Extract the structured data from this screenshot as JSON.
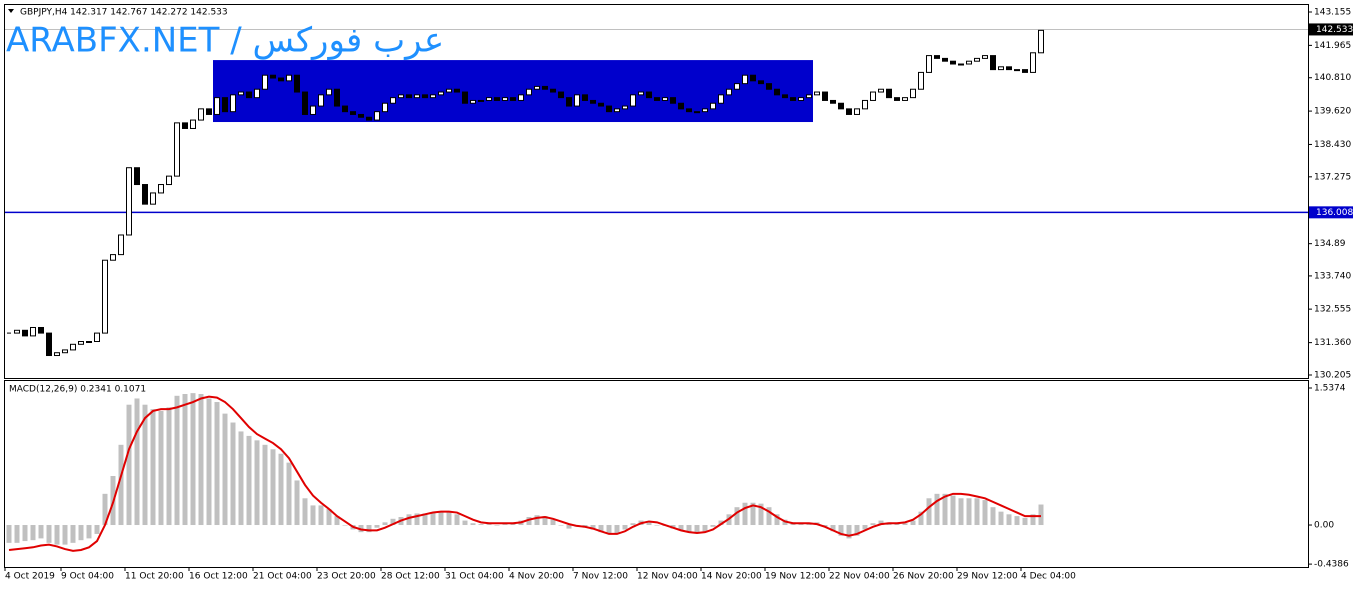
{
  "chart_data": {
    "type": "candlestick",
    "header": "GBPJPY,H4  142.317 142.767 142.272 142.533",
    "watermark": "ARABFX.NET / عرب فوركس",
    "color_up": "#ffffff",
    "color_down": "#000000",
    "categories": [
      "4 Oct 2019",
      null,
      null,
      null,
      null,
      null,
      null,
      "9 Oct 04:00",
      null,
      null,
      null,
      null,
      null,
      null,
      null,
      "11 Oct 20:00",
      null,
      null,
      null,
      null,
      null,
      null,
      null,
      "16 Oct 12:00",
      null,
      null,
      null,
      null,
      null,
      null,
      null,
      "21 Oct 04:00",
      null,
      null,
      null,
      null,
      null,
      null,
      null,
      "23 Oct 20:00",
      null,
      null,
      null,
      null,
      null,
      null,
      null,
      "28 Oct 12:00",
      null,
      null,
      null,
      null,
      null,
      null,
      null,
      "31 Oct 04:00",
      null,
      null,
      null,
      null,
      null,
      null,
      null,
      "4 Nov 20:00",
      null,
      null,
      null,
      null,
      null,
      null,
      null,
      "7 Nov 12:00",
      null,
      null,
      null,
      null,
      null,
      null,
      null,
      "12 Nov 04:00",
      null,
      null,
      null,
      null,
      null,
      null,
      null,
      "14 Nov 20:00",
      null,
      null,
      null,
      null,
      null,
      null,
      null,
      "19 Nov 12:00",
      null,
      null,
      null,
      null,
      null,
      null,
      null,
      "22 Nov 04:00",
      null,
      null,
      null,
      null,
      null,
      null,
      null,
      "26 Nov 20:00",
      null,
      null,
      null,
      null,
      null,
      null,
      null,
      "29 Nov 12:00",
      null,
      null,
      null,
      null,
      null,
      null,
      null,
      "4 Dec 04:00",
      null,
      null
    ],
    "close": [
      131.7,
      131.8,
      131.6,
      131.9,
      131.7,
      130.9,
      131.0,
      131.1,
      131.3,
      131.4,
      131.4,
      131.7,
      134.3,
      134.5,
      135.2,
      137.6,
      137.0,
      136.3,
      136.7,
      137.0,
      137.3,
      139.2,
      139.0,
      139.3,
      139.7,
      139.5,
      140.1,
      139.6,
      140.2,
      140.3,
      140.1,
      140.4,
      140.9,
      140.8,
      140.7,
      140.9,
      140.3,
      139.5,
      139.8,
      140.2,
      140.4,
      139.8,
      139.6,
      139.5,
      139.4,
      139.3,
      139.6,
      139.9,
      140.1,
      140.2,
      140.1,
      140.2,
      140.1,
      140.2,
      140.3,
      140.4,
      140.3,
      139.9,
      140.0,
      140.0,
      140.1,
      140.0,
      140.1,
      140.0,
      140.2,
      140.4,
      140.5,
      140.4,
      140.3,
      140.1,
      139.8,
      140.2,
      140.0,
      139.9,
      139.8,
      139.6,
      139.7,
      139.8,
      140.2,
      140.3,
      140.1,
      140.0,
      140.1,
      139.9,
      139.7,
      139.6,
      139.6,
      139.7,
      139.9,
      140.2,
      140.4,
      140.6,
      140.9,
      140.7,
      140.6,
      140.4,
      140.2,
      140.1,
      140.0,
      140.1,
      140.2,
      140.3,
      140.0,
      139.9,
      139.7,
      139.5,
      139.7,
      140.0,
      140.3,
      140.4,
      140.1,
      140.0,
      140.1,
      140.4,
      141.0,
      141.6,
      141.5,
      141.4,
      141.3,
      141.3,
      141.4,
      141.5,
      141.6,
      141.1,
      141.2,
      141.1,
      141.1,
      141.0,
      141.7,
      142.5
    ],
    "ylim": [
      130.098,
      143.405
    ],
    "yticks": [
      143.155,
      141.965,
      {
        "value": 140.81,
        "label": "140.810"
      },
      {
        "value": 139.62,
        "label": "139.620"
      },
      {
        "value": 138.43,
        "label": "138.430"
      },
      137.275,
      134.89,
      {
        "value": 133.74,
        "label": "133.740"
      },
      132.555,
      {
        "value": 131.36,
        "label": "131.360"
      },
      130.205
    ],
    "hline": {
      "value": 136.008,
      "color": "#0000cc"
    },
    "current_price": 142.533,
    "zone": {
      "from": 26,
      "to": 100,
      "low": 139.23,
      "high": 141.44,
      "color": "#0000cc"
    },
    "indicator": {
      "type": "macd",
      "label": "MACD(12,26,9) 0.2341 0.1071",
      "ylim": [
        -0.471,
        1.616
      ],
      "yticks": [
        1.5374,
        {
          "value": 0,
          "label": "0.00"
        },
        -0.4386
      ],
      "histogram": {
        "color": "#c0c0c0",
        "values": [
          -0.2,
          -0.2,
          -0.18,
          -0.17,
          -0.15,
          -0.2,
          -0.22,
          -0.22,
          -0.2,
          -0.17,
          -0.15,
          -0.1,
          0.35,
          0.55,
          0.9,
          1.35,
          1.42,
          1.35,
          1.3,
          1.28,
          1.32,
          1.45,
          1.47,
          1.48,
          1.47,
          1.42,
          1.38,
          1.25,
          1.15,
          1.05,
          1.0,
          0.95,
          0.9,
          0.85,
          0.8,
          0.7,
          0.5,
          0.3,
          0.22,
          0.22,
          0.18,
          0.1,
          0.0,
          -0.05,
          -0.08,
          -0.08,
          -0.03,
          0.03,
          0.07,
          0.09,
          0.12,
          0.13,
          0.13,
          0.14,
          0.15,
          0.15,
          0.12,
          0.05,
          0.02,
          0.01,
          0.01,
          0.0,
          0.01,
          0.02,
          0.05,
          0.09,
          0.11,
          0.1,
          0.06,
          0.0,
          -0.04,
          -0.02,
          -0.03,
          -0.05,
          -0.08,
          -0.1,
          -0.09,
          -0.05,
          0.02,
          0.05,
          0.04,
          0.0,
          -0.01,
          -0.04,
          -0.06,
          -0.08,
          -0.09,
          -0.07,
          -0.02,
          0.05,
          0.12,
          0.2,
          0.25,
          0.25,
          0.24,
          0.2,
          0.12,
          0.06,
          0.03,
          0.02,
          0.02,
          0.03,
          -0.02,
          -0.07,
          -0.12,
          -0.15,
          -0.12,
          -0.05,
          0.02,
          0.05,
          0.03,
          0.02,
          0.02,
          0.05,
          0.15,
          0.3,
          0.35,
          0.35,
          0.33,
          0.3,
          0.3,
          0.3,
          0.28,
          0.2,
          0.15,
          0.12,
          0.1,
          0.08,
          0.12,
          0.23
        ]
      },
      "signal": {
        "color": "#e00000",
        "values": [
          -0.28,
          -0.27,
          -0.26,
          -0.25,
          -0.23,
          -0.22,
          -0.24,
          -0.27,
          -0.29,
          -0.28,
          -0.25,
          -0.18,
          0.0,
          0.25,
          0.55,
          0.85,
          1.05,
          1.2,
          1.28,
          1.3,
          1.3,
          1.32,
          1.35,
          1.38,
          1.42,
          1.44,
          1.43,
          1.38,
          1.3,
          1.2,
          1.1,
          1.02,
          0.97,
          0.92,
          0.85,
          0.75,
          0.6,
          0.45,
          0.33,
          0.25,
          0.18,
          0.1,
          0.04,
          -0.02,
          -0.05,
          -0.06,
          -0.06,
          -0.03,
          0.01,
          0.05,
          0.08,
          0.1,
          0.12,
          0.14,
          0.15,
          0.15,
          0.14,
          0.1,
          0.06,
          0.03,
          0.02,
          0.02,
          0.02,
          0.02,
          0.03,
          0.06,
          0.08,
          0.09,
          0.07,
          0.04,
          0.01,
          -0.01,
          -0.02,
          -0.04,
          -0.07,
          -0.1,
          -0.1,
          -0.07,
          -0.02,
          0.02,
          0.04,
          0.03,
          0.0,
          -0.03,
          -0.06,
          -0.08,
          -0.09,
          -0.08,
          -0.05,
          0.01,
          0.07,
          0.14,
          0.19,
          0.22,
          0.2,
          0.15,
          0.09,
          0.04,
          0.02,
          0.02,
          0.02,
          0.01,
          -0.02,
          -0.06,
          -0.1,
          -0.12,
          -0.1,
          -0.06,
          -0.02,
          0.01,
          0.02,
          0.02,
          0.03,
          0.06,
          0.12,
          0.2,
          0.27,
          0.32,
          0.35,
          0.35,
          0.34,
          0.32,
          0.3,
          0.26,
          0.22,
          0.18,
          0.14,
          0.1,
          0.1,
          0.1
        ]
      }
    }
  }
}
